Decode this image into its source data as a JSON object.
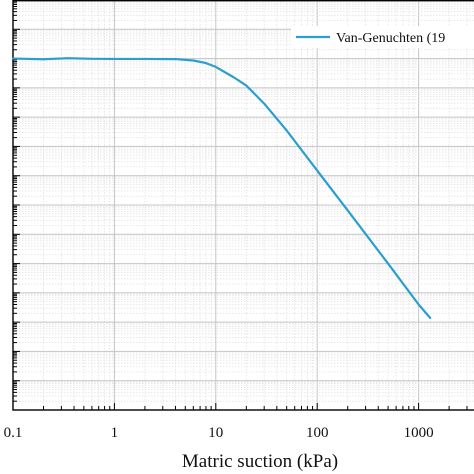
{
  "chart_data": {
    "type": "line",
    "title": "",
    "xlabel": "Matric suction (kPa)",
    "ylabel": "",
    "x_scale": "log",
    "y_scale": "log",
    "xlim": [
      0.1,
      10000
    ],
    "ylim": [
      1e-17,
      0.001
    ],
    "x_ticks": [
      {
        "value": 0.1,
        "label": "0.1"
      },
      {
        "value": 1,
        "label": "1"
      },
      {
        "value": 10,
        "label": "10"
      },
      {
        "value": 100,
        "label": "100"
      },
      {
        "value": 1000,
        "label": "1000"
      }
    ],
    "grid": true,
    "legend_position": "top-right",
    "series": [
      {
        "name": "Van-Genuchten (19",
        "color": "#2b9ed1",
        "points": [
          [
            0.1,
            1e-05
          ],
          [
            0.2,
            9.5e-06
          ],
          [
            0.35,
            1.03e-05
          ],
          [
            0.6,
            9.8e-06
          ],
          [
            1,
            9.7e-06
          ],
          [
            2,
            9.7e-06
          ],
          [
            4,
            9.6e-06
          ],
          [
            6,
            8.6e-06
          ],
          [
            8,
            7e-06
          ],
          [
            10,
            5.2e-06
          ],
          [
            15,
            2.3e-06
          ],
          [
            20,
            1.2e-06
          ],
          [
            30,
            2.9e-07
          ],
          [
            50,
            3.5e-08
          ],
          [
            100,
            1.5e-09
          ],
          [
            200,
            6.5e-11
          ],
          [
            500,
            1e-12
          ],
          [
            1000,
            4e-14
          ],
          [
            1300,
            1.4e-14
          ]
        ]
      }
    ]
  }
}
